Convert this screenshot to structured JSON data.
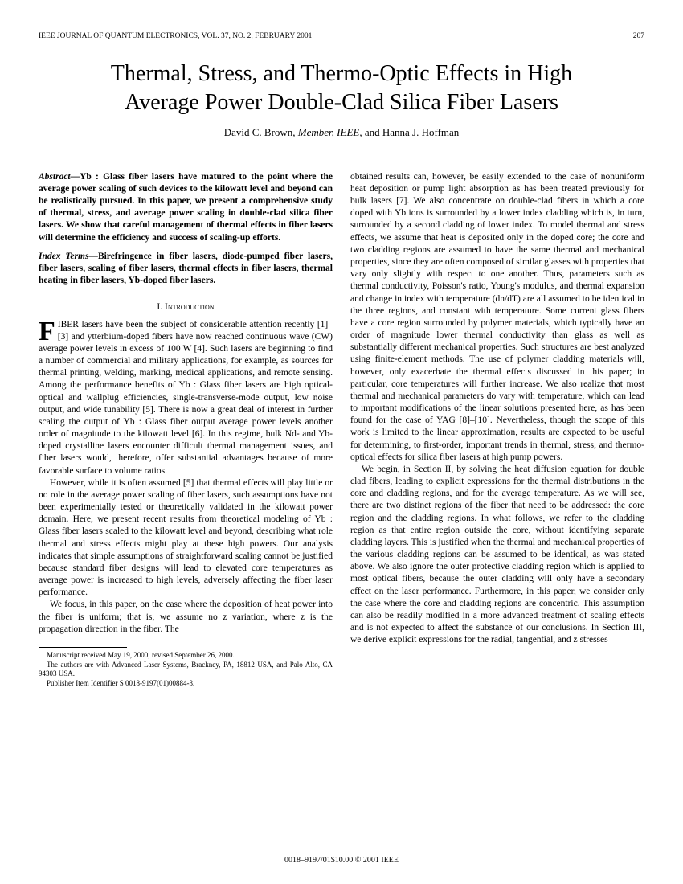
{
  "header": {
    "journal": "IEEE JOURNAL OF QUANTUM ELECTRONICS, VOL. 37, NO. 2, FEBRUARY 2001",
    "page_number": "207"
  },
  "title_line1": "Thermal, Stress, and Thermo-Optic Effects in High",
  "title_line2": "Average Power Double-Clad Silica Fiber Lasers",
  "authors": {
    "author1": "David C. Brown",
    "role1": ", Member, IEEE,",
    "conj": " and ",
    "author2": "Hanna J. Hoffman"
  },
  "abstract": {
    "label": "Abstract—",
    "text": "Yb : Glass fiber lasers have matured to the point where the average power scaling of such devices to the kilowatt level and beyond can be realistically pursued. In this paper, we present a comprehensive study of thermal, stress, and average power scaling in double-clad silica fiber lasers. We show that careful management of thermal effects in fiber lasers will determine the efficiency and success of scaling-up efforts."
  },
  "index_terms": {
    "label": "Index Terms—",
    "text": "Birefringence in fiber lasers, diode-pumped fiber lasers, fiber lasers, scaling of fiber lasers, thermal effects in fiber lasers, thermal heating in fiber lasers, Yb-doped fiber lasers."
  },
  "section1": {
    "number": "I.  ",
    "title": "Introduction"
  },
  "intro_para1_dropcap": "F",
  "intro_para1": "IBER lasers have been the subject of considerable attention recently [1]–[3] and ytterbium-doped fibers have now reached continuous wave (CW) average power levels in excess of 100 W [4]. Such lasers are beginning to find a number of commercial and military applications, for example, as sources for thermal printing, welding, marking, medical applications, and remote sensing. Among the performance benefits of Yb : Glass fiber lasers are high optical-optical and wallplug efficiencies, single-transverse-mode output, low noise output, and wide tunability [5]. There is now a great deal of interest in further scaling the output of Yb : Glass fiber output average power levels another order of magnitude to the kilowatt level [6]. In this regime, bulk Nd- and Yb-doped crystalline lasers encounter difficult thermal management issues, and fiber lasers would, therefore, offer substantial advantages because of more favorable surface to volume ratios.",
  "intro_para2": "However, while it is often assumed [5] that thermal effects will play little or no role in the average power scaling of fiber lasers, such assumptions have not been experimentally tested or theoretically validated in the kilowatt power domain. Here, we present recent results from theoretical modeling of Yb : Glass fiber lasers scaled to the kilowatt level and beyond, describing what role thermal and stress effects might play at these high powers. Our analysis indicates that simple assumptions of straightforward scaling cannot be justified because standard fiber designs will lead to elevated core temperatures as average power is increased to high levels, adversely affecting the fiber laser performance.",
  "intro_para3": "We focus, in this paper, on the case where the deposition of heat power into the fiber is uniform; that is, we assume no z variation, where z is the propagation direction in the fiber. The",
  "col2_para1": "obtained results can, however, be easily extended to the case of nonuniform heat deposition or pump light absorption as has been treated previously for bulk lasers [7]. We also concentrate on double-clad fibers in which a core doped with Yb ions is surrounded by a lower index cladding which is, in turn, surrounded by a second cladding of lower index. To model thermal and stress effects, we assume that heat is deposited only in the doped core; the core and two cladding regions are assumed to have the same thermal and mechanical properties, since they are often composed of similar glasses with properties that vary only slightly with respect to one another. Thus, parameters such as thermal conductivity, Poisson's ratio, Young's modulus, and thermal expansion and change in index with temperature (dn/dT) are all assumed to be identical in the three regions, and constant with temperature. Some current glass fibers have a core region surrounded by polymer materials, which typically have an order of magnitude lower thermal conductivity than glass as well as substantially different mechanical properties. Such structures are best analyzed using finite-element methods. The use of polymer cladding materials will, however, only exacerbate the thermal effects discussed in this paper; in particular, core temperatures will further increase. We also realize that most thermal and mechanical parameters do vary with temperature, which can lead to important modifications of the linear solutions presented here, as has been found for the case of YAG [8]–[10]. Nevertheless, though the scope of this work is limited to the linear approximation, results are expected to be useful for determining, to first-order, important trends in thermal, stress, and thermo-optical effects for silica fiber lasers at high pump powers.",
  "col2_para2": "We begin, in Section II, by solving the heat diffusion equation for double clad fibers, leading to explicit expressions for the thermal distributions in the core and cladding regions, and for the average temperature. As we will see, there are two distinct regions of the fiber that need to be addressed: the core region and the cladding regions. In what follows, we refer to the cladding region as that entire region outside the core, without identifying separate cladding layers. This is justified when the thermal and mechanical properties of the various cladding regions can be assumed to be identical, as was stated above. We also ignore the outer protective cladding region which is applied to most optical fibers, because the outer cladding will only have a secondary effect on the laser performance. Furthermore, in this paper, we consider only the case where the core and cladding regions are concentric. This assumption can also be readily modified in a more advanced treatment of scaling effects and is not expected to affect the substance of our conclusions. In Section III, we derive explicit expressions for the radial, tangential, and z stresses",
  "footnotes": {
    "f1": "Manuscript received May 19, 2000; revised September 26, 2000.",
    "f2": "The authors are with Advanced Laser Systems, Brackney, PA, 18812 USA, and Palo Alto, CA 94303 USA.",
    "f3": "Publisher Item Identifier S 0018-9197(01)00884-3."
  },
  "bottom": "0018–9197/01$10.00 © 2001 IEEE"
}
